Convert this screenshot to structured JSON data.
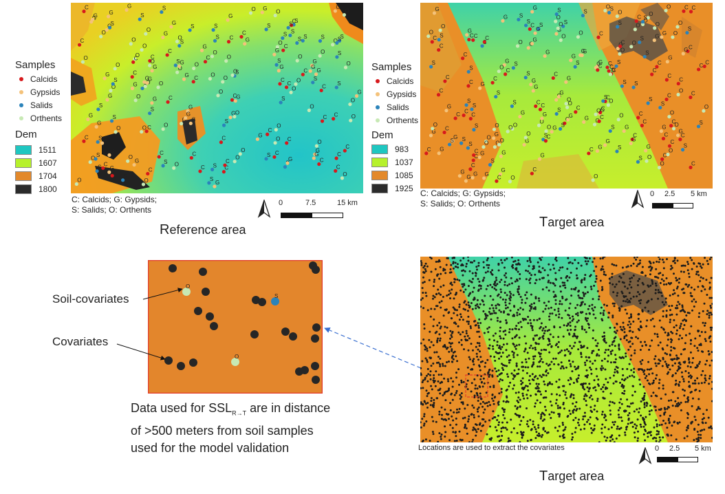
{
  "reference_panel": {
    "legend": {
      "samples_title": "Samples",
      "samples": [
        {
          "label": "Calcids",
          "color": "#d7191c"
        },
        {
          "label": "Gypsids",
          "color": "#f4c27a"
        },
        {
          "label": "Salids",
          "color": "#2b83ba"
        },
        {
          "label": "Orthents",
          "color": "#c7e9b4"
        }
      ],
      "dem_title": "Dem",
      "dem": [
        {
          "label": "1511",
          "color": "#1fc7c1"
        },
        {
          "label": "1607",
          "color": "#b6f12c"
        },
        {
          "label": "1704",
          "color": "#e3892b"
        },
        {
          "label": "1800",
          "color": "#2b2b2b"
        }
      ]
    },
    "note_line1": "C: Calcids; G: Gypsids;",
    "note_line2": "S: Salids; O: Orthents",
    "scale": {
      "t0": "0",
      "t1": "7.5",
      "t2": "15 km"
    },
    "caption_initial": "R",
    "caption_rest": "eference area"
  },
  "target_panel": {
    "legend": {
      "samples_title": "Samples",
      "samples": [
        {
          "label": "Calcids",
          "color": "#d7191c"
        },
        {
          "label": "Gypsids",
          "color": "#f4c27a"
        },
        {
          "label": "Salids",
          "color": "#2b83ba"
        },
        {
          "label": "Orthents",
          "color": "#c7e9b4"
        }
      ],
      "dem_title": "Dem",
      "dem": [
        {
          "label": "983",
          "color": "#1fc7c1"
        },
        {
          "label": "1037",
          "color": "#b6f12c"
        },
        {
          "label": "1085",
          "color": "#e3892b"
        },
        {
          "label": "1925",
          "color": "#2b2b2b"
        }
      ]
    },
    "note_line1": "C: Calcids; G: Gypsids;",
    "note_line2": "S: Salids; O: Orthents",
    "scale": {
      "t0": "0",
      "t1": "2.5",
      "t2": "5 km"
    },
    "caption_initial": "T",
    "caption_rest": "arget area"
  },
  "zoom_panel": {
    "label_soil_covariates": "Soil-covariates",
    "label_covariates": "Covariates",
    "sample_letters": [
      "O",
      "S",
      "O"
    ],
    "text_line1_prefix": "Data used for SSL",
    "text_line1_subscript": "R→T",
    "text_line1_suffix": " are in distance",
    "text_line2": "of >500 meters from soil samples",
    "text_line3": "used for the model validation"
  },
  "bottom_target_panel": {
    "note": "Locations are used to extract the covariates",
    "scale": {
      "t0": "0",
      "t1": "2.5",
      "t2": "5 km"
    },
    "caption_initial": "T",
    "caption_rest": "arget area"
  }
}
